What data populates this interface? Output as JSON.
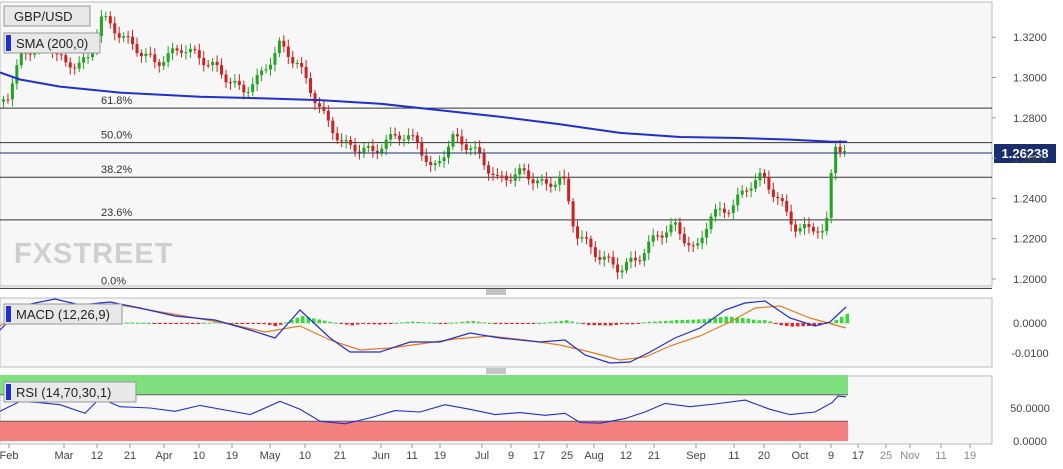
{
  "chart_data": {
    "type": "candlestick",
    "instrument": "GBP/USD",
    "watermark": "FXSTREET",
    "main": {
      "indicator_label": "SMA (200,0)",
      "y_ticks": [
        "1.3200",
        "1.3000",
        "1.2800",
        "1.2600",
        "1.2400",
        "1.2200",
        "1.2000"
      ],
      "ylim": [
        1.1965,
        1.3375
      ],
      "last_price": "1.26238",
      "fib_levels": [
        {
          "label": "61.8%",
          "price": 1.2848
        },
        {
          "label": "50.0%",
          "price": 1.2677
        },
        {
          "label": "38.2%",
          "price": 1.2505
        },
        {
          "label": "23.6%",
          "price": 1.2293
        },
        {
          "label": "0.0%",
          "price": 1.1953
        }
      ],
      "sma_200": [
        [
          0,
          1.3025
        ],
        [
          20,
          1.299
        ],
        [
          60,
          1.2955
        ],
        [
          120,
          1.2925
        ],
        [
          200,
          1.2905
        ],
        [
          260,
          1.2897
        ],
        [
          320,
          1.2888
        ],
        [
          380,
          1.287
        ],
        [
          440,
          1.2838
        ],
        [
          500,
          1.2805
        ],
        [
          560,
          1.2768
        ],
        [
          620,
          1.2725
        ],
        [
          680,
          1.2705
        ],
        [
          740,
          1.27
        ],
        [
          790,
          1.2692
        ],
        [
          830,
          1.2682
        ],
        [
          847,
          1.2681
        ]
      ]
    },
    "macd": {
      "label": "MACD (12,26,9)",
      "y_ticks": [
        "0.0000",
        "-0.0100"
      ]
    },
    "rsi": {
      "label": "RSI (14,70,30,1)",
      "y_ticks": [
        "50.0000",
        "0.0000"
      ],
      "overbought": 70,
      "oversold": 30
    },
    "x_ticks": [
      "Feb",
      "Mar",
      "12",
      "21",
      "Apr",
      "10",
      "19",
      "May",
      "10",
      "21",
      "Jun",
      "11",
      "19",
      "Jul",
      "9",
      "17",
      "25",
      "Aug",
      "12",
      "21",
      "Sep",
      "11",
      "20",
      "Oct",
      "9",
      "17",
      "25",
      "Nov",
      "11",
      "19"
    ]
  }
}
